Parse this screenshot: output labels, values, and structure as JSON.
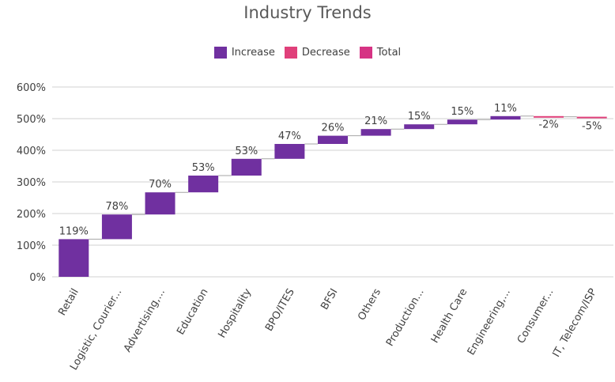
{
  "chart_data": {
    "type": "waterfall",
    "title": "Industry Trends",
    "legend": [
      {
        "label": "Increase",
        "color": "#7030A0"
      },
      {
        "label": "Decrease",
        "color": "#E0407A"
      },
      {
        "label": "Total",
        "color": "#D63384"
      }
    ],
    "legend_position": "top",
    "categories": [
      "Retail",
      "Logistic, Courier...",
      "Advertising,...",
      "Education",
      "Hospitality",
      "BPO/ITES",
      "BFSI",
      "Others",
      "Production...",
      "Health Care",
      "Engineering,...",
      "Consumer...",
      "IT, Telecom/ISP"
    ],
    "values": [
      119,
      78,
      70,
      53,
      53,
      47,
      26,
      21,
      15,
      15,
      11,
      -2,
      -5
    ],
    "data_labels": [
      "119%",
      "78%",
      "70%",
      "53%",
      "53%",
      "47%",
      "26%",
      "21%",
      "15%",
      "15%",
      "11%",
      "-2%",
      "-5%"
    ],
    "ylim": [
      0,
      600
    ],
    "yticks": [
      "0%",
      "100%",
      "200%",
      "300%",
      "400%",
      "500%",
      "600%"
    ],
    "grid": true,
    "colors": {
      "increase": "#7030A0",
      "decrease": "#E0407A",
      "grid": "#D9D9D9",
      "connector": "#A6A6A6",
      "text": "#404040"
    }
  }
}
